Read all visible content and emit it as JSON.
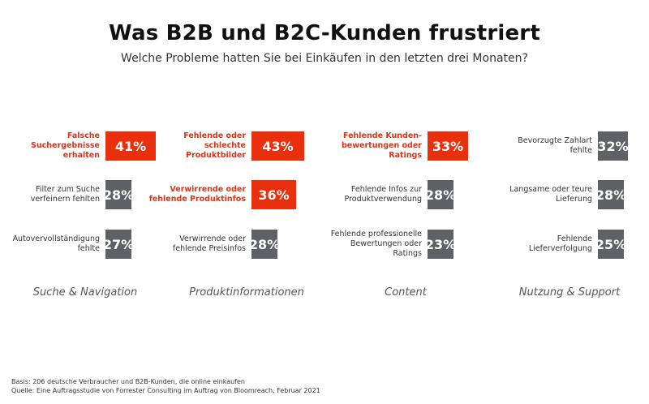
{
  "chart_data": {
    "type": "table",
    "title": "Was B2B und B2C-Kunden frustriert",
    "subtitle": "Welche Probleme hatten Sie bei Einkäufen in den letzten drei Monaten?",
    "unit": "%",
    "categories": [
      {
        "name": "Suche & Navigation",
        "items": [
          {
            "label": "Falsche Suchergebnisse erhalten",
            "value": 41,
            "value_label": "41%",
            "highlight": true
          },
          {
            "label": "Filter zum Suche verfeinern fehlten",
            "value": 28,
            "value_label": "28%",
            "highlight": false
          },
          {
            "label": "Autovervollständigung fehlte",
            "value": 27,
            "value_label": "27%",
            "highlight": false
          }
        ]
      },
      {
        "name": "Produktinformationen",
        "items": [
          {
            "label": "Fehlende oder schlechte Produktbilder",
            "value": 43,
            "value_label": "43%",
            "highlight": true
          },
          {
            "label": "Verwirrende oder fehlende Produktinfos",
            "value": 36,
            "value_label": "36%",
            "highlight": true
          },
          {
            "label": "Verwirrende oder fehlende Preisinfos",
            "value": 28,
            "value_label": "28%",
            "highlight": false
          }
        ]
      },
      {
        "name": "Content",
        "items": [
          {
            "label": "Fehlende Kunden-bewertungen oder Ratings",
            "value": 33,
            "value_label": "33%",
            "highlight": true
          },
          {
            "label": "Fehlende Infos zur Produktverwendung",
            "value": 28,
            "value_label": "28%",
            "highlight": false
          },
          {
            "label": "Fehlende professionelle Bewertungen oder Ratings",
            "value": 23,
            "value_label": "23%",
            "highlight": false
          }
        ]
      },
      {
        "name": "Nutzung & Support",
        "items": [
          {
            "label": "Bevorzugte Zahlart fehlte",
            "value": 32,
            "value_label": "32%",
            "highlight": false
          },
          {
            "label": "Langsame oder teure Lieferung",
            "value": 28,
            "value_label": "28%",
            "highlight": false
          },
          {
            "label": "Fehlende Lieferverfolgung",
            "value": 25,
            "value_label": "25%",
            "highlight": false
          }
        ]
      }
    ]
  },
  "footer": {
    "basis": "Basis: 206 deutsche Verbraucher und B2B-Kunden, die online einkaufen",
    "source": "Quelle: Eine Auftragsstudie von Forrester Consulting im Auftrag von Bloomreach, Februar 2021"
  }
}
